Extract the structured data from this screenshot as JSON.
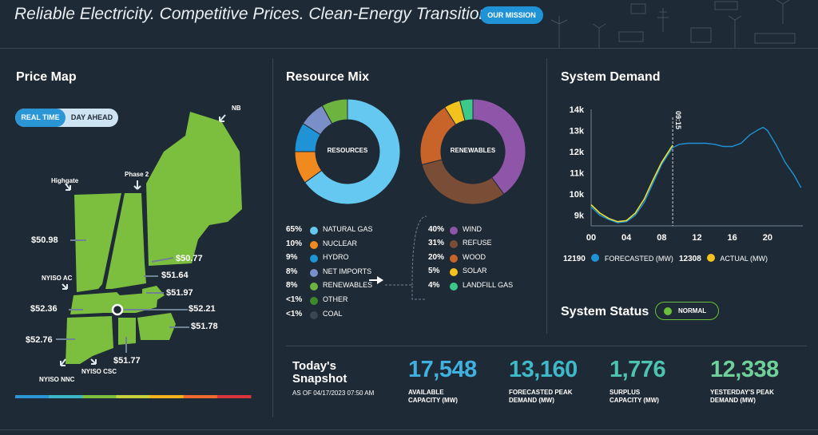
{
  "header": {
    "tagline": "Reliable Electricity. Competitive Prices. Clean-Energy Transition.",
    "mission_button": "OUR MISSION"
  },
  "price_map": {
    "title": "Price Map",
    "toggle": {
      "real_time": "REAL TIME",
      "day_ahead": "DAY AHEAD",
      "selected": "REAL TIME"
    },
    "interfaces": [
      "NB",
      "Highgate",
      "Phase 2",
      "NYISO AC",
      "NYISO NNC",
      "NYISO CSC"
    ],
    "prices": [
      "$50.98",
      "$50.77",
      "$51.64",
      "$51.97",
      "$52.36",
      "$52.21",
      "$51.78",
      "$52.76",
      "$51.77"
    ],
    "colors": {
      "land": "#7cbf3f",
      "gauge": [
        "#2a96d6",
        "#3bb6c6",
        "#7cbf3f",
        "#c8d23a",
        "#f2b21e",
        "#ee6a2f",
        "#d8343b"
      ]
    }
  },
  "resource_mix": {
    "title": "Resource Mix",
    "resources_label": "RESOURCES",
    "renewables_label": "RENEWABLES",
    "resources": [
      {
        "pct": "65%",
        "label": "NATURAL GAS",
        "color": "#64c8f0",
        "value": 65
      },
      {
        "pct": "10%",
        "label": "NUCLEAR",
        "color": "#f08a1e",
        "value": 10
      },
      {
        "pct": "9%",
        "label": "HYDRO",
        "color": "#1f93d6",
        "value": 9
      },
      {
        "pct": "8%",
        "label": "NET IMPORTS",
        "color": "#7a8fc8",
        "value": 8
      },
      {
        "pct": "8%",
        "label": "RENEWABLES",
        "color": "#6cb33f",
        "value": 8
      },
      {
        "pct": "<1%",
        "label": "OTHER",
        "color": "#3d8a2e",
        "value": 0
      },
      {
        "pct": "<1%",
        "label": "COAL",
        "color": "#3a4753",
        "value": 0
      }
    ],
    "renewables": [
      {
        "pct": "40%",
        "label": "WIND",
        "color": "#8e55a8",
        "value": 40
      },
      {
        "pct": "31%",
        "label": "REFUSE",
        "color": "#7a4e36",
        "value": 31
      },
      {
        "pct": "20%",
        "label": "WOOD",
        "color": "#c8642a",
        "value": 20
      },
      {
        "pct": "5%",
        "label": "SOLAR",
        "color": "#f4c21c",
        "value": 5
      },
      {
        "pct": "4%",
        "label": "LANDFILL GAS",
        "color": "#3cc98a",
        "value": 4
      }
    ]
  },
  "system_demand": {
    "title": "System Demand",
    "time_marker": "09:15",
    "forecasted_value": "12190",
    "forecasted_label": "FORECASTED (MW)",
    "actual_value": "12308",
    "actual_label": "ACTUAL (MW)"
  },
  "chart_data": {
    "type": "line",
    "xlabel": "",
    "ylabel": "",
    "x_ticks": [
      "00",
      "04",
      "08",
      "12",
      "16",
      "20"
    ],
    "y_ticks": [
      "9k",
      "10k",
      "11k",
      "12k",
      "13k",
      "14k"
    ],
    "xlim": [
      0,
      24
    ],
    "ylim": [
      8500,
      14000
    ],
    "marker_x": 9.25,
    "series": [
      {
        "name": "FORECASTED (MW)",
        "color": "#1f93d6",
        "x": [
          0,
          1,
          2,
          3,
          4,
          5,
          6,
          7,
          8,
          9,
          9.25,
          10,
          11,
          12,
          13,
          14,
          15,
          16,
          17,
          18,
          19,
          19.5,
          20,
          21,
          22,
          23,
          23.8
        ],
        "y": [
          9400,
          9000,
          8800,
          8650,
          8700,
          9000,
          9600,
          10500,
          11400,
          12050,
          12190,
          12350,
          12400,
          12400,
          12400,
          12350,
          12250,
          12250,
          12400,
          12800,
          13050,
          13150,
          13000,
          12300,
          11500,
          10900,
          10300
        ]
      },
      {
        "name": "ACTUAL (MW)",
        "color": "#e8e13a",
        "x": [
          0,
          1,
          2,
          3,
          4,
          5,
          6,
          7,
          8,
          9,
          9.25
        ],
        "y": [
          9500,
          9100,
          8850,
          8700,
          8750,
          9100,
          9750,
          10650,
          11500,
          12150,
          12308
        ]
      }
    ]
  },
  "system_status": {
    "title": "System Status",
    "status": "NORMAL",
    "status_color": "#6cbf3a"
  },
  "snapshot": {
    "title_line1": "Today's",
    "title_line2": "Snapshot",
    "date": "AS OF 04/17/2023 07:50 AM",
    "stats": [
      {
        "value": "17,548",
        "label_line1": "AVAILABLE",
        "label_line2": "CAPACITY (MW)",
        "color": "#3fb0e0"
      },
      {
        "value": "13,160",
        "label_line1": "FORECASTED PEAK",
        "label_line2": "DEMAND (MW)",
        "color": "#3fb8c8"
      },
      {
        "value": "1,776",
        "label_line1": "SURPLUS",
        "label_line2": "CAPACITY (MW)",
        "color": "#4cc4b0"
      },
      {
        "value": "12,338",
        "label_line1": "YESTERDAY'S PEAK",
        "label_line2": "DEMAND (MW)",
        "color": "#6fd09a"
      }
    ]
  }
}
